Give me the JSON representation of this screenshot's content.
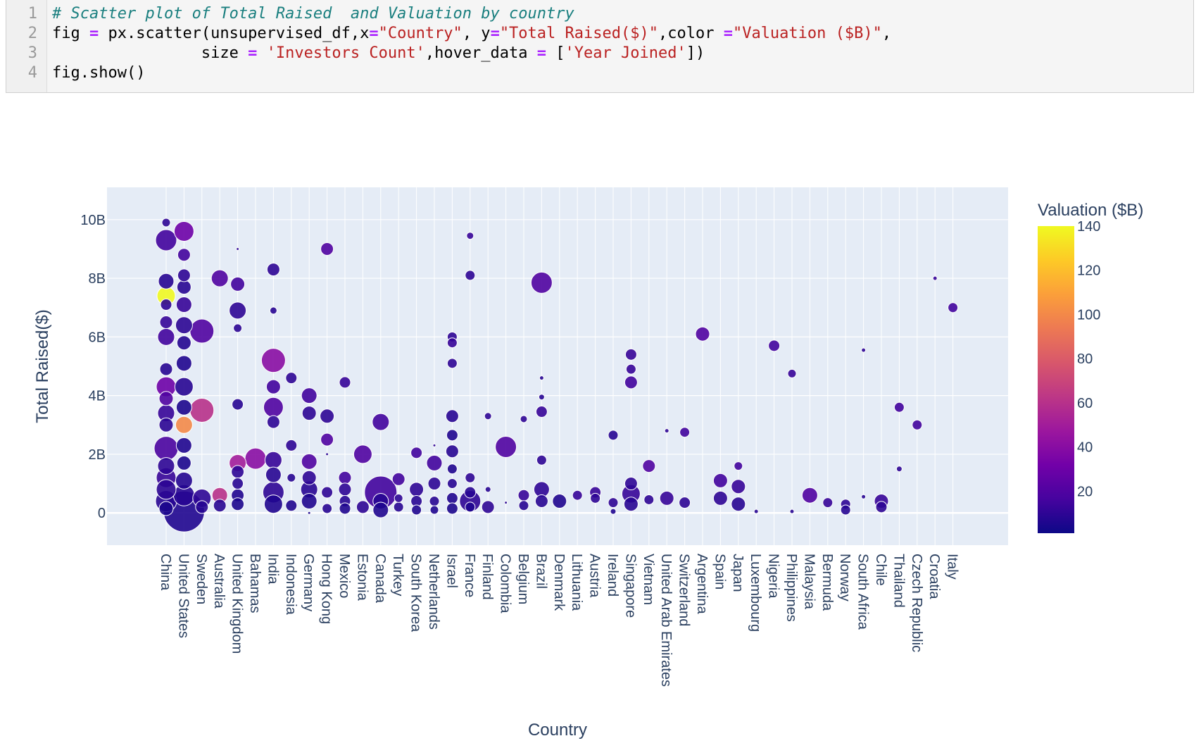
{
  "code": {
    "line_numbers": [
      "1",
      "2",
      "3",
      "4"
    ],
    "comment": "# Scatter plot of Total Raised  and Valuation by country",
    "line2_a": "fig ",
    "line2_b": "=",
    "line2_c": " px.scatter(unsupervised_df,x",
    "line2_d": "=",
    "line2_e": "\"Country\"",
    "line2_f": ", y",
    "line2_g": "=",
    "line2_h": "\"Total Raised($)\"",
    "line2_i": ",color ",
    "line2_j": "=",
    "line2_k": "\"Valuation ($B)\"",
    "line2_l": ",",
    "line3_a": "                size ",
    "line3_b": "=",
    "line3_c": " ",
    "line3_d": "'Investors Count'",
    "line3_e": ",hover_data ",
    "line3_f": "=",
    "line3_g": " [",
    "line3_h": "'Year Joined'",
    "line3_i": "])",
    "line4": "fig.show()"
  },
  "chart_data": {
    "type": "scatter",
    "xlabel": "Country",
    "ylabel": "Total Raised($)",
    "colorbar_title": "Valuation ($B)",
    "colorbar_ticks": [
      "140",
      "120",
      "100",
      "80",
      "60",
      "40",
      "20"
    ],
    "colorbar_range": [
      1,
      140
    ],
    "colorscale": [
      "#0d0887",
      "#46039f",
      "#7201a8",
      "#9c179e",
      "#bd3786",
      "#d8576b",
      "#ed7953",
      "#fb9f3a",
      "#fdca26",
      "#f0f921"
    ],
    "ylim": [
      -1.1,
      11.1
    ],
    "y_ticks": [
      0,
      2,
      4,
      6,
      8,
      10
    ],
    "y_tick_labels": [
      "0",
      "2B",
      "4B",
      "6B",
      "8B",
      "10B"
    ],
    "grid": true,
    "colors": {
      "plot_bg": "#e5ecf6",
      "marker_line": "#ffffff",
      "grid": "#ffffff",
      "axis_text": "#2a3f5f"
    },
    "categories": [
      "China",
      "United States",
      "Sweden",
      "Australia",
      "United Kingdom",
      "Bahamas",
      "India",
      "Indonesia",
      "Germany",
      "Hong Kong",
      "Mexico",
      "Estonia",
      "Canada",
      "Turkey",
      "South Korea",
      "Netherlands",
      "Israel",
      "France",
      "Finland",
      "Colombia",
      "Belgium",
      "Brazil",
      "Denmark",
      "Lithuania",
      "Austria",
      "Ireland",
      "Singapore",
      "Vietnam",
      "United Arab Emirates",
      "Switzerland",
      "Argentina",
      "Spain",
      "Japan",
      "Luxembourg",
      "Nigeria",
      "Philippines",
      "Malaysia",
      "Bermuda",
      "Norway",
      "South Africa",
      "Chile",
      "Thailand",
      "Czech Republic",
      "Croatia",
      "Italy"
    ],
    "points": [
      {
        "x": "China",
        "y": 9.9,
        "s": 12,
        "v": 10
      },
      {
        "x": "China",
        "y": 9.3,
        "s": 30,
        "v": 15
      },
      {
        "x": "China",
        "y": 7.9,
        "s": 22,
        "v": 8
      },
      {
        "x": "China",
        "y": 7.4,
        "s": 26,
        "v": 140
      },
      {
        "x": "China",
        "y": 7.1,
        "s": 16,
        "v": 10
      },
      {
        "x": "China",
        "y": 6.5,
        "s": 18,
        "v": 12
      },
      {
        "x": "China",
        "y": 6.0,
        "s": 24,
        "v": 15
      },
      {
        "x": "China",
        "y": 4.9,
        "s": 18,
        "v": 8
      },
      {
        "x": "China",
        "y": 4.3,
        "s": 28,
        "v": 30
      },
      {
        "x": "China",
        "y": 3.9,
        "s": 20,
        "v": 20
      },
      {
        "x": "China",
        "y": 3.4,
        "s": 24,
        "v": 12
      },
      {
        "x": "China",
        "y": 3.0,
        "s": 20,
        "v": 9
      },
      {
        "x": "China",
        "y": 2.2,
        "s": 34,
        "v": 18
      },
      {
        "x": "China",
        "y": 1.6,
        "s": 24,
        "v": 10
      },
      {
        "x": "China",
        "y": 1.2,
        "s": 28,
        "v": 12
      },
      {
        "x": "China",
        "y": 0.8,
        "s": 28,
        "v": 9
      },
      {
        "x": "China",
        "y": 0.4,
        "s": 30,
        "v": 8
      },
      {
        "x": "China",
        "y": 0.15,
        "s": 20,
        "v": 5
      },
      {
        "x": "United States",
        "y": 9.6,
        "s": 28,
        "v": 30
      },
      {
        "x": "United States",
        "y": 8.8,
        "s": 18,
        "v": 15
      },
      {
        "x": "United States",
        "y": 8.1,
        "s": 18,
        "v": 10
      },
      {
        "x": "United States",
        "y": 7.7,
        "s": 20,
        "v": 8
      },
      {
        "x": "United States",
        "y": 7.1,
        "s": 22,
        "v": 12
      },
      {
        "x": "United States",
        "y": 6.4,
        "s": 24,
        "v": 9
      },
      {
        "x": "United States",
        "y": 5.8,
        "s": 20,
        "v": 7
      },
      {
        "x": "United States",
        "y": 5.1,
        "s": 22,
        "v": 6
      },
      {
        "x": "United States",
        "y": 4.3,
        "s": 26,
        "v": 8
      },
      {
        "x": "United States",
        "y": 3.6,
        "s": 22,
        "v": 5
      },
      {
        "x": "United States",
        "y": 3.0,
        "s": 24,
        "v": 100
      },
      {
        "x": "United States",
        "y": 2.3,
        "s": 22,
        "v": 6
      },
      {
        "x": "United States",
        "y": 1.7,
        "s": 20,
        "v": 5
      },
      {
        "x": "United States",
        "y": 1.1,
        "s": 24,
        "v": 7
      },
      {
        "x": "United States",
        "y": 0.6,
        "s": 30,
        "v": 8
      },
      {
        "x": "United States",
        "y": 0.05,
        "s": 58,
        "v": 6
      },
      {
        "x": "Sweden",
        "y": 6.2,
        "s": 34,
        "v": 20
      },
      {
        "x": "Sweden",
        "y": 3.5,
        "s": 34,
        "v": 60
      },
      {
        "x": "Sweden",
        "y": 0.5,
        "s": 26,
        "v": 10
      },
      {
        "x": "Sweden",
        "y": 0.2,
        "s": 18,
        "v": 8
      },
      {
        "x": "Australia",
        "y": 8.0,
        "s": 24,
        "v": 20
      },
      {
        "x": "Australia",
        "y": 0.6,
        "s": 22,
        "v": 60
      },
      {
        "x": "Australia",
        "y": 0.25,
        "s": 18,
        "v": 8
      },
      {
        "x": "United Kingdom",
        "y": 9.0,
        "s": 4,
        "v": 10
      },
      {
        "x": "United Kingdom",
        "y": 7.8,
        "s": 20,
        "v": 15
      },
      {
        "x": "United Kingdom",
        "y": 6.9,
        "s": 24,
        "v": 10
      },
      {
        "x": "United Kingdom",
        "y": 6.3,
        "s": 12,
        "v": 9
      },
      {
        "x": "United Kingdom",
        "y": 3.7,
        "s": 16,
        "v": 8
      },
      {
        "x": "United Kingdom",
        "y": 1.7,
        "s": 24,
        "v": 50
      },
      {
        "x": "United Kingdom",
        "y": 1.4,
        "s": 18,
        "v": 10
      },
      {
        "x": "United Kingdom",
        "y": 1.0,
        "s": 16,
        "v": 8
      },
      {
        "x": "United Kingdom",
        "y": 0.6,
        "s": 18,
        "v": 6
      },
      {
        "x": "United Kingdom",
        "y": 0.3,
        "s": 18,
        "v": 5
      },
      {
        "x": "Bahamas",
        "y": 1.85,
        "s": 30,
        "v": 40
      },
      {
        "x": "India",
        "y": 8.3,
        "s": 18,
        "v": 10
      },
      {
        "x": "India",
        "y": 6.9,
        "s": 10,
        "v": 8
      },
      {
        "x": "India",
        "y": 5.2,
        "s": 34,
        "v": 40
      },
      {
        "x": "India",
        "y": 4.3,
        "s": 20,
        "v": 15
      },
      {
        "x": "India",
        "y": 3.6,
        "s": 28,
        "v": 20
      },
      {
        "x": "India",
        "y": 3.1,
        "s": 18,
        "v": 10
      },
      {
        "x": "India",
        "y": 1.8,
        "s": 24,
        "v": 12
      },
      {
        "x": "India",
        "y": 1.3,
        "s": 22,
        "v": 8
      },
      {
        "x": "India",
        "y": 0.7,
        "s": 30,
        "v": 10
      },
      {
        "x": "India",
        "y": 0.3,
        "s": 26,
        "v": 6
      },
      {
        "x": "Indonesia",
        "y": 4.6,
        "s": 16,
        "v": 10
      },
      {
        "x": "Indonesia",
        "y": 2.3,
        "s": 16,
        "v": 10
      },
      {
        "x": "Indonesia",
        "y": 1.2,
        "s": 12,
        "v": 8
      },
      {
        "x": "Indonesia",
        "y": 0.25,
        "s": 16,
        "v": 6
      },
      {
        "x": "Germany",
        "y": 4.0,
        "s": 22,
        "v": 15
      },
      {
        "x": "Germany",
        "y": 3.4,
        "s": 20,
        "v": 10
      },
      {
        "x": "Germany",
        "y": 1.75,
        "s": 22,
        "v": 20
      },
      {
        "x": "Germany",
        "y": 1.2,
        "s": 20,
        "v": 10
      },
      {
        "x": "Germany",
        "y": 0.8,
        "s": 24,
        "v": 8
      },
      {
        "x": "Germany",
        "y": 0.4,
        "s": 22,
        "v": 6
      },
      {
        "x": "Germany",
        "y": 0.0,
        "s": 4,
        "v": 5
      },
      {
        "x": "Hong Kong",
        "y": 9.0,
        "s": 18,
        "v": 20
      },
      {
        "x": "Hong Kong",
        "y": 3.3,
        "s": 20,
        "v": 10
      },
      {
        "x": "Hong Kong",
        "y": 2.5,
        "s": 18,
        "v": 20
      },
      {
        "x": "Hong Kong",
        "y": 2.0,
        "s": 4,
        "v": 8
      },
      {
        "x": "Hong Kong",
        "y": 0.7,
        "s": 16,
        "v": 10
      },
      {
        "x": "Hong Kong",
        "y": 0.15,
        "s": 14,
        "v": 8
      },
      {
        "x": "Mexico",
        "y": 4.45,
        "s": 16,
        "v": 12
      },
      {
        "x": "Mexico",
        "y": 1.2,
        "s": 18,
        "v": 15
      },
      {
        "x": "Mexico",
        "y": 0.8,
        "s": 18,
        "v": 10
      },
      {
        "x": "Mexico",
        "y": 0.4,
        "s": 16,
        "v": 8
      },
      {
        "x": "Mexico",
        "y": 0.15,
        "s": 16,
        "v": 6
      },
      {
        "x": "Estonia",
        "y": 2.0,
        "s": 26,
        "v": 20
      },
      {
        "x": "Estonia",
        "y": 0.2,
        "s": 18,
        "v": 10
      },
      {
        "x": "Canada",
        "y": 3.1,
        "s": 24,
        "v": 15
      },
      {
        "x": "Canada",
        "y": 0.7,
        "s": 46,
        "v": 15
      },
      {
        "x": "Canada",
        "y": 0.4,
        "s": 22,
        "v": 8
      },
      {
        "x": "Canada",
        "y": 0.1,
        "s": 22,
        "v": 6
      },
      {
        "x": "Turkey",
        "y": 1.15,
        "s": 18,
        "v": 15
      },
      {
        "x": "Turkey",
        "y": 0.5,
        "s": 12,
        "v": 10
      },
      {
        "x": "Turkey",
        "y": 0.2,
        "s": 14,
        "v": 8
      },
      {
        "x": "South Korea",
        "y": 2.05,
        "s": 16,
        "v": 15
      },
      {
        "x": "South Korea",
        "y": 0.8,
        "s": 20,
        "v": 10
      },
      {
        "x": "South Korea",
        "y": 0.4,
        "s": 16,
        "v": 8
      },
      {
        "x": "South Korea",
        "y": 0.1,
        "s": 14,
        "v": 6
      },
      {
        "x": "Netherlands",
        "y": 2.3,
        "s": 4,
        "v": 10
      },
      {
        "x": "Netherlands",
        "y": 1.7,
        "s": 22,
        "v": 15
      },
      {
        "x": "Netherlands",
        "y": 1.0,
        "s": 18,
        "v": 10
      },
      {
        "x": "Netherlands",
        "y": 0.4,
        "s": 14,
        "v": 8
      },
      {
        "x": "Netherlands",
        "y": 0.1,
        "s": 12,
        "v": 6
      },
      {
        "x": "Israel",
        "y": 6.0,
        "s": 14,
        "v": 10
      },
      {
        "x": "Israel",
        "y": 5.8,
        "s": 14,
        "v": 12
      },
      {
        "x": "Israel",
        "y": 5.1,
        "s": 14,
        "v": 10
      },
      {
        "x": "Israel",
        "y": 3.3,
        "s": 18,
        "v": 8
      },
      {
        "x": "Israel",
        "y": 2.65,
        "s": 16,
        "v": 6
      },
      {
        "x": "Israel",
        "y": 2.1,
        "s": 18,
        "v": 8
      },
      {
        "x": "Israel",
        "y": 1.5,
        "s": 14,
        "v": 6
      },
      {
        "x": "Israel",
        "y": 1.0,
        "s": 14,
        "v": 8
      },
      {
        "x": "Israel",
        "y": 0.5,
        "s": 16,
        "v": 6
      },
      {
        "x": "Israel",
        "y": 0.15,
        "s": 16,
        "v": 5
      },
      {
        "x": "France",
        "y": 9.45,
        "s": 10,
        "v": 12
      },
      {
        "x": "France",
        "y": 8.1,
        "s": 14,
        "v": 10
      },
      {
        "x": "France",
        "y": 1.2,
        "s": 14,
        "v": 10
      },
      {
        "x": "France",
        "y": 0.7,
        "s": 16,
        "v": 8
      },
      {
        "x": "France",
        "y": 0.4,
        "s": 30,
        "v": 10
      },
      {
        "x": "France",
        "y": 0.2,
        "s": 14,
        "v": 6
      },
      {
        "x": "Finland",
        "y": 3.3,
        "s": 10,
        "v": 10
      },
      {
        "x": "Finland",
        "y": 0.8,
        "s": 8,
        "v": 8
      },
      {
        "x": "Finland",
        "y": 0.2,
        "s": 18,
        "v": 10
      },
      {
        "x": "Colombia",
        "y": 2.25,
        "s": 30,
        "v": 20
      },
      {
        "x": "Colombia",
        "y": 0.35,
        "s": 4,
        "v": 8
      },
      {
        "x": "Belgium",
        "y": 3.2,
        "s": 10,
        "v": 10
      },
      {
        "x": "Belgium",
        "y": 0.6,
        "s": 16,
        "v": 12
      },
      {
        "x": "Belgium",
        "y": 0.25,
        "s": 14,
        "v": 8
      },
      {
        "x": "Brazil",
        "y": 7.85,
        "s": 30,
        "v": 20
      },
      {
        "x": "Brazil",
        "y": 4.6,
        "s": 6,
        "v": 8
      },
      {
        "x": "Brazil",
        "y": 3.95,
        "s": 8,
        "v": 8
      },
      {
        "x": "Brazil",
        "y": 3.45,
        "s": 16,
        "v": 12
      },
      {
        "x": "Brazil",
        "y": 1.8,
        "s": 14,
        "v": 10
      },
      {
        "x": "Brazil",
        "y": 0.8,
        "s": 22,
        "v": 10
      },
      {
        "x": "Brazil",
        "y": 0.4,
        "s": 18,
        "v": 8
      },
      {
        "x": "Denmark",
        "y": 0.4,
        "s": 20,
        "v": 6
      },
      {
        "x": "Lithuania",
        "y": 0.6,
        "s": 14,
        "v": 12
      },
      {
        "x": "Austria",
        "y": 0.7,
        "s": 16,
        "v": 12
      },
      {
        "x": "Austria",
        "y": 0.5,
        "s": 14,
        "v": 10
      },
      {
        "x": "Ireland",
        "y": 2.65,
        "s": 14,
        "v": 8
      },
      {
        "x": "Ireland",
        "y": 0.35,
        "s": 14,
        "v": 10
      },
      {
        "x": "Ireland",
        "y": 0.05,
        "s": 8,
        "v": 6
      },
      {
        "x": "Singapore",
        "y": 5.4,
        "s": 16,
        "v": 12
      },
      {
        "x": "Singapore",
        "y": 4.9,
        "s": 14,
        "v": 12
      },
      {
        "x": "Singapore",
        "y": 4.45,
        "s": 18,
        "v": 15
      },
      {
        "x": "Singapore",
        "y": 1.0,
        "s": 18,
        "v": 10
      },
      {
        "x": "Singapore",
        "y": 0.65,
        "s": 26,
        "v": 12
      },
      {
        "x": "Singapore",
        "y": 0.3,
        "s": 20,
        "v": 8
      },
      {
        "x": "Vietnam",
        "y": 1.6,
        "s": 18,
        "v": 20
      },
      {
        "x": "Vietnam",
        "y": 0.45,
        "s": 14,
        "v": 10
      },
      {
        "x": "United Arab Emirates",
        "y": 2.8,
        "s": 6,
        "v": 10
      },
      {
        "x": "United Arab Emirates",
        "y": 0.5,
        "s": 20,
        "v": 12
      },
      {
        "x": "Switzerland",
        "y": 2.75,
        "s": 14,
        "v": 15
      },
      {
        "x": "Switzerland",
        "y": 0.35,
        "s": 16,
        "v": 10
      },
      {
        "x": "Argentina",
        "y": 6.1,
        "s": 20,
        "v": 20
      },
      {
        "x": "Spain",
        "y": 1.1,
        "s": 20,
        "v": 15
      },
      {
        "x": "Spain",
        "y": 0.5,
        "s": 20,
        "v": 10
      },
      {
        "x": "Japan",
        "y": 1.6,
        "s": 12,
        "v": 15
      },
      {
        "x": "Japan",
        "y": 0.9,
        "s": 20,
        "v": 12
      },
      {
        "x": "Japan",
        "y": 0.3,
        "s": 20,
        "v": 8
      },
      {
        "x": "Luxembourg",
        "y": 0.05,
        "s": 6,
        "v": 8
      },
      {
        "x": "Nigeria",
        "y": 5.7,
        "s": 16,
        "v": 15
      },
      {
        "x": "Philippines",
        "y": 4.75,
        "s": 12,
        "v": 12
      },
      {
        "x": "Philippines",
        "y": 0.05,
        "s": 6,
        "v": 8
      },
      {
        "x": "Malaysia",
        "y": 0.6,
        "s": 22,
        "v": 20
      },
      {
        "x": "Bermuda",
        "y": 0.35,
        "s": 14,
        "v": 12
      },
      {
        "x": "Norway",
        "y": 0.3,
        "s": 14,
        "v": 10
      },
      {
        "x": "Norway",
        "y": 0.1,
        "s": 14,
        "v": 8
      },
      {
        "x": "South Africa",
        "y": 5.55,
        "s": 6,
        "v": 10
      },
      {
        "x": "South Africa",
        "y": 0.55,
        "s": 6,
        "v": 8
      },
      {
        "x": "Chile",
        "y": 0.4,
        "s": 20,
        "v": 12
      },
      {
        "x": "Chile",
        "y": 0.2,
        "s": 16,
        "v": 10
      },
      {
        "x": "Thailand",
        "y": 3.6,
        "s": 14,
        "v": 15
      },
      {
        "x": "Thailand",
        "y": 1.5,
        "s": 8,
        "v": 10
      },
      {
        "x": "Czech Republic",
        "y": 3.0,
        "s": 14,
        "v": 15
      },
      {
        "x": "Croatia",
        "y": 8.0,
        "s": 6,
        "v": 12
      },
      {
        "x": "Italy",
        "y": 7.0,
        "s": 14,
        "v": 15
      }
    ]
  }
}
